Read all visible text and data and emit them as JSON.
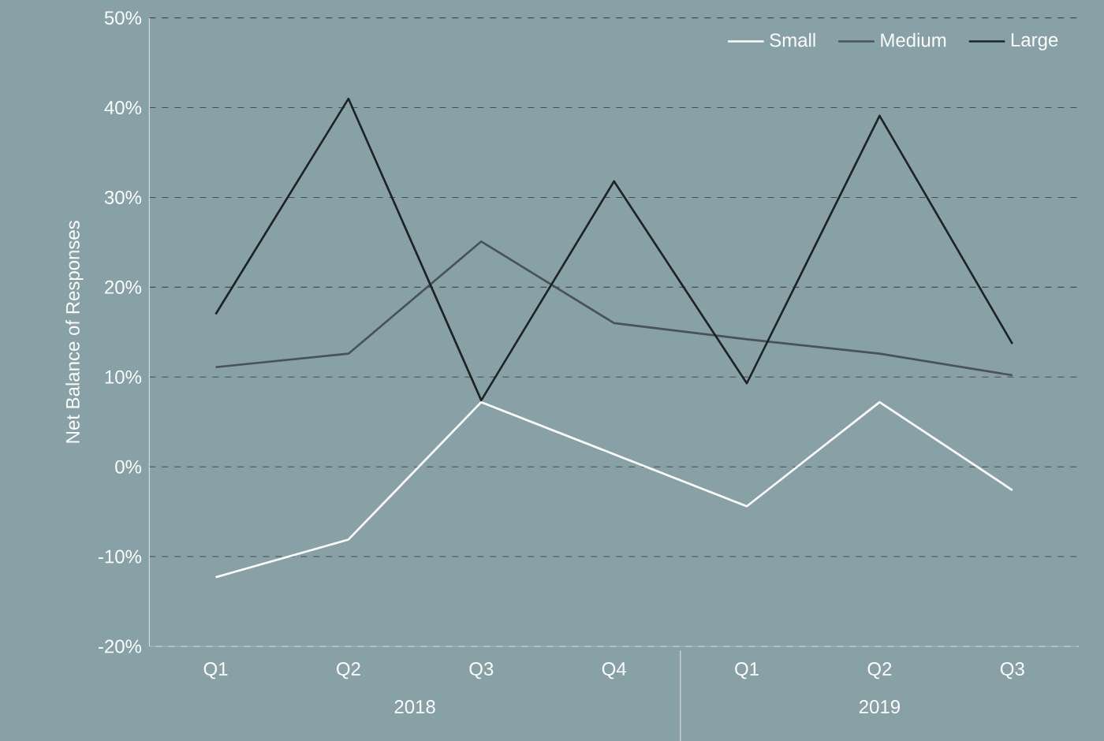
{
  "chart_data": {
    "type": "line",
    "ylabel": "Net Balance of Responses",
    "categories": [
      "Q1",
      "Q2",
      "Q3",
      "Q4",
      "Q1",
      "Q2",
      "Q3"
    ],
    "series": [
      {
        "name": "Small",
        "color": "#ffffff",
        "values": [
          -12.3,
          -8.1,
          7.2,
          1.4,
          -4.4,
          7.2,
          -2.6
        ]
      },
      {
        "name": "Medium",
        "color": "#4a5356",
        "values": [
          11.1,
          12.6,
          25.1,
          16.0,
          14.2,
          12.6,
          10.2
        ]
      },
      {
        "name": "Large",
        "color": "#1e2426",
        "values": [
          17.0,
          41.0,
          7.4,
          31.8,
          9.3,
          39.1,
          13.7
        ]
      }
    ],
    "ylim": [
      -20,
      50
    ],
    "yticks": [
      {
        "value": -20,
        "label": "-20%"
      },
      {
        "value": -10,
        "label": "-10%"
      },
      {
        "value": 0,
        "label": "0%"
      },
      {
        "value": 10,
        "label": "10%"
      },
      {
        "value": 20,
        "label": "20%"
      },
      {
        "value": 30,
        "label": "30%"
      },
      {
        "value": 40,
        "label": "40%"
      },
      {
        "value": 50,
        "label": "50%"
      }
    ],
    "grid": "y",
    "legend": "top right",
    "annotations": [
      "2018",
      "2019"
    ]
  }
}
